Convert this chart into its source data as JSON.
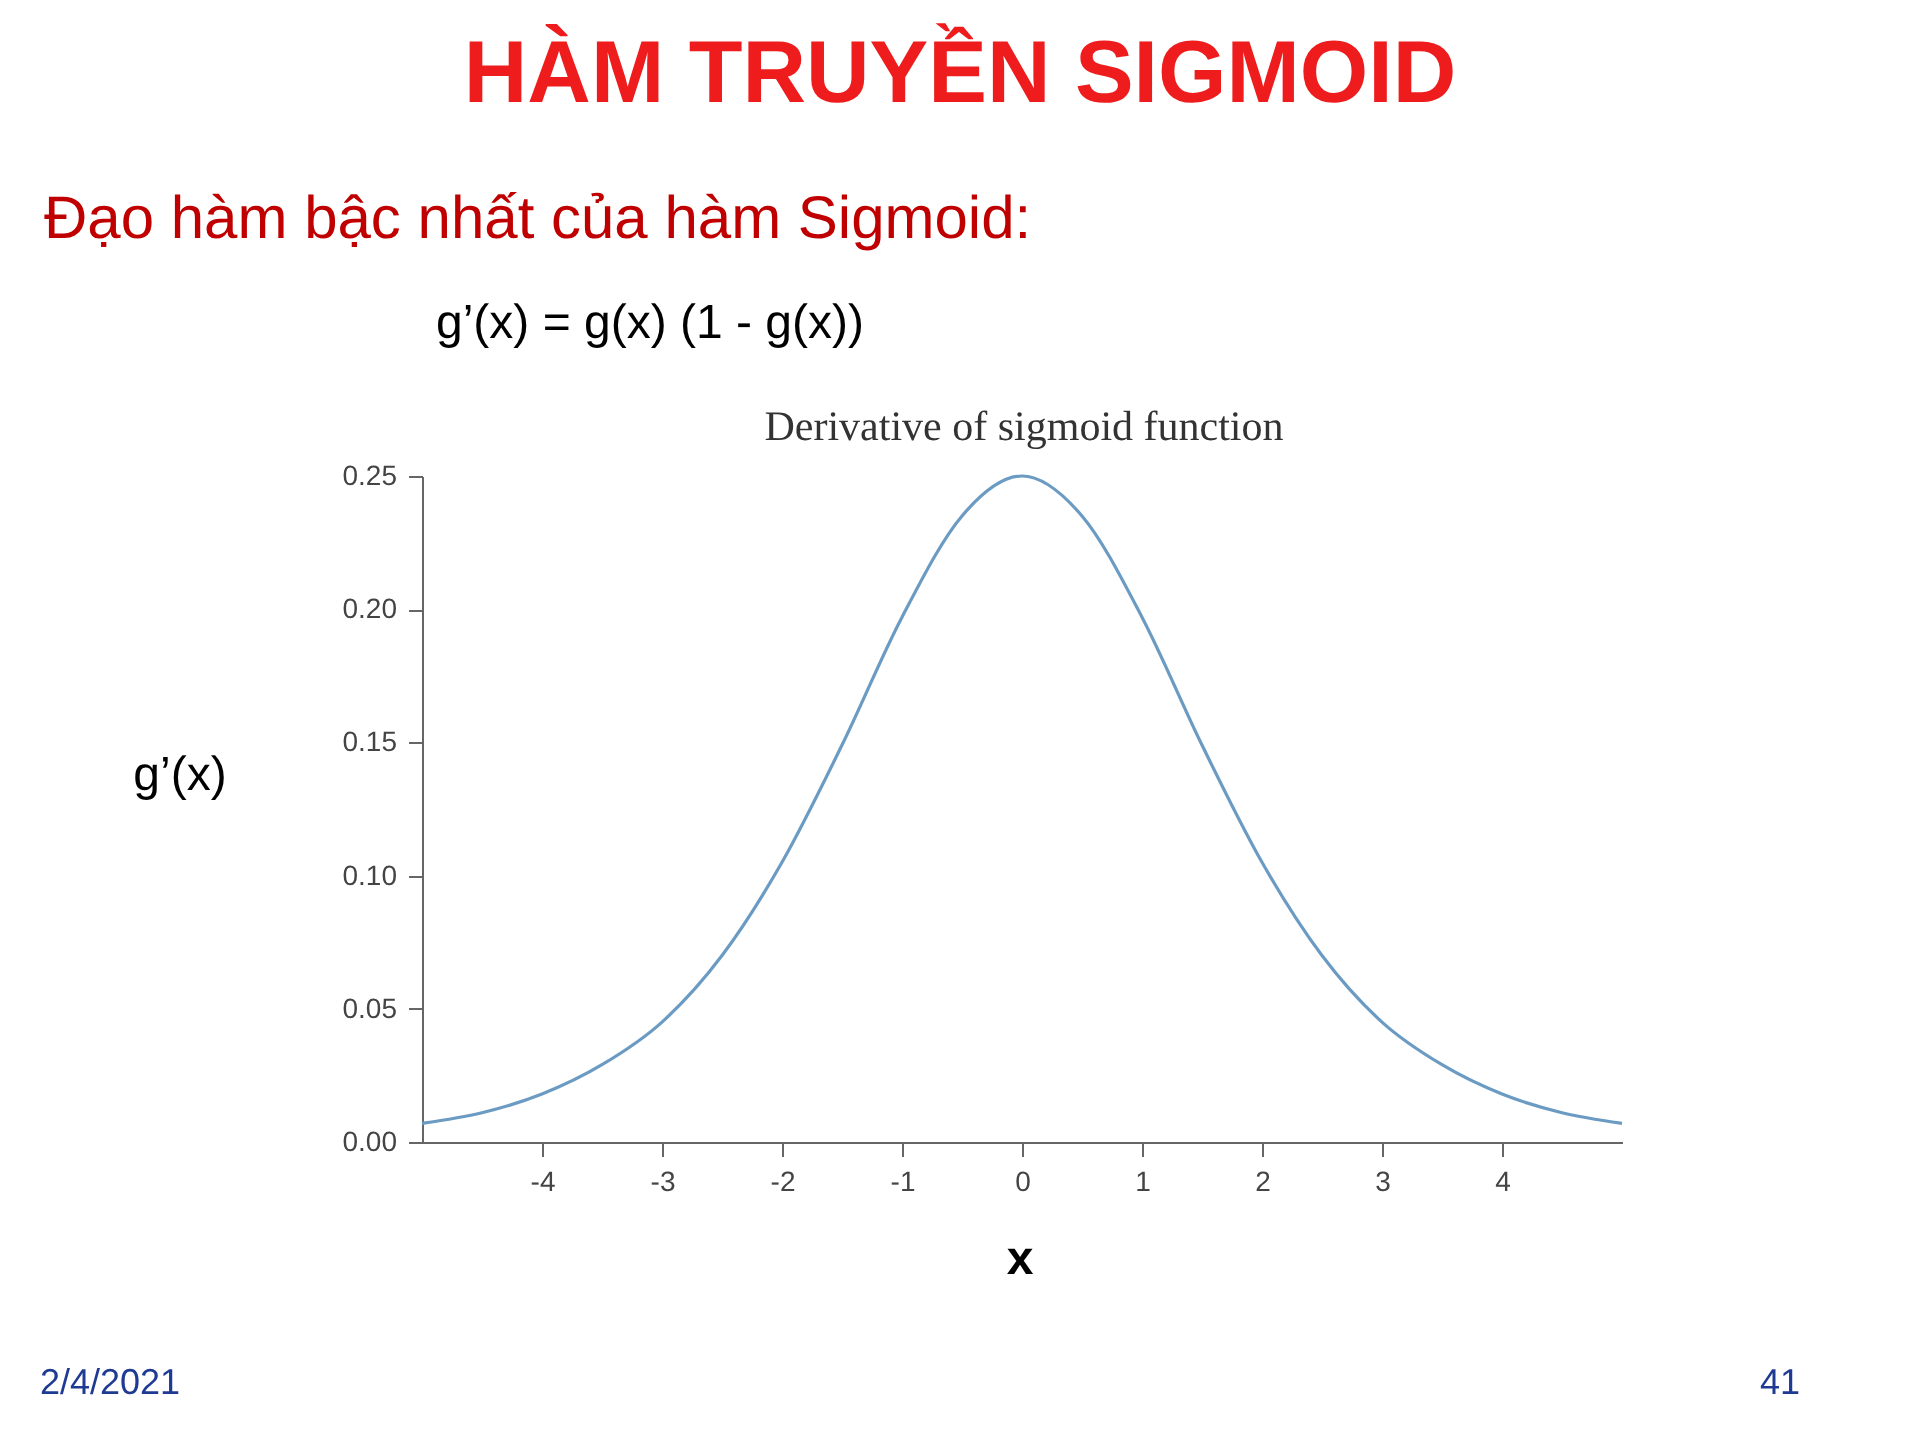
{
  "chart_data": {
    "type": "line",
    "title": "HÀM TRUYỀN SIGMOID",
    "subtitle": "Đạo hàm bậc nhất của hàm Sigmoid:",
    "xlabel": "x",
    "ylabel": "g’(x)",
    "annotations": [
      "g’(x) = g(x) (1 - g(x))",
      "Derivative of sigmoid function",
      "2/4/2021",
      "41"
    ],
    "x": [
      -5,
      -4.5,
      -4,
      -3.5,
      -3,
      -2.5,
      -2,
      -1.5,
      -1,
      -0.5,
      0,
      0.5,
      1,
      1.5,
      2,
      2.5,
      3,
      3.5,
      4,
      4.5,
      5
    ],
    "series": [
      {
        "color": "#6b9bc3",
        "values": [
          0.007,
          0.011,
          0.018,
          0.029,
          0.045,
          0.07,
          0.105,
          0.149,
          0.197,
          0.235,
          0.25,
          0.235,
          0.197,
          0.149,
          0.105,
          0.07,
          0.045,
          0.029,
          0.018,
          0.011,
          0.007
        ]
      }
    ],
    "xlim": [
      -5,
      5
    ],
    "xticks": [
      -4,
      -3,
      -2,
      -1,
      0,
      1,
      2,
      3,
      4
    ],
    "ylim": [
      0,
      0.25
    ],
    "yticks": [
      {
        "value": 0,
        "label": "0.00"
      },
      {
        "value": 0.05,
        "label": "0.05"
      },
      {
        "value": 0.1,
        "label": "0.10"
      },
      {
        "value": 0.15,
        "label": "0.15"
      },
      {
        "value": 0.2,
        "label": "0.20"
      },
      {
        "value": 0.25,
        "label": "0.25"
      }
    ],
    "grid": false,
    "marker": "none",
    "line_style": "solid"
  }
}
